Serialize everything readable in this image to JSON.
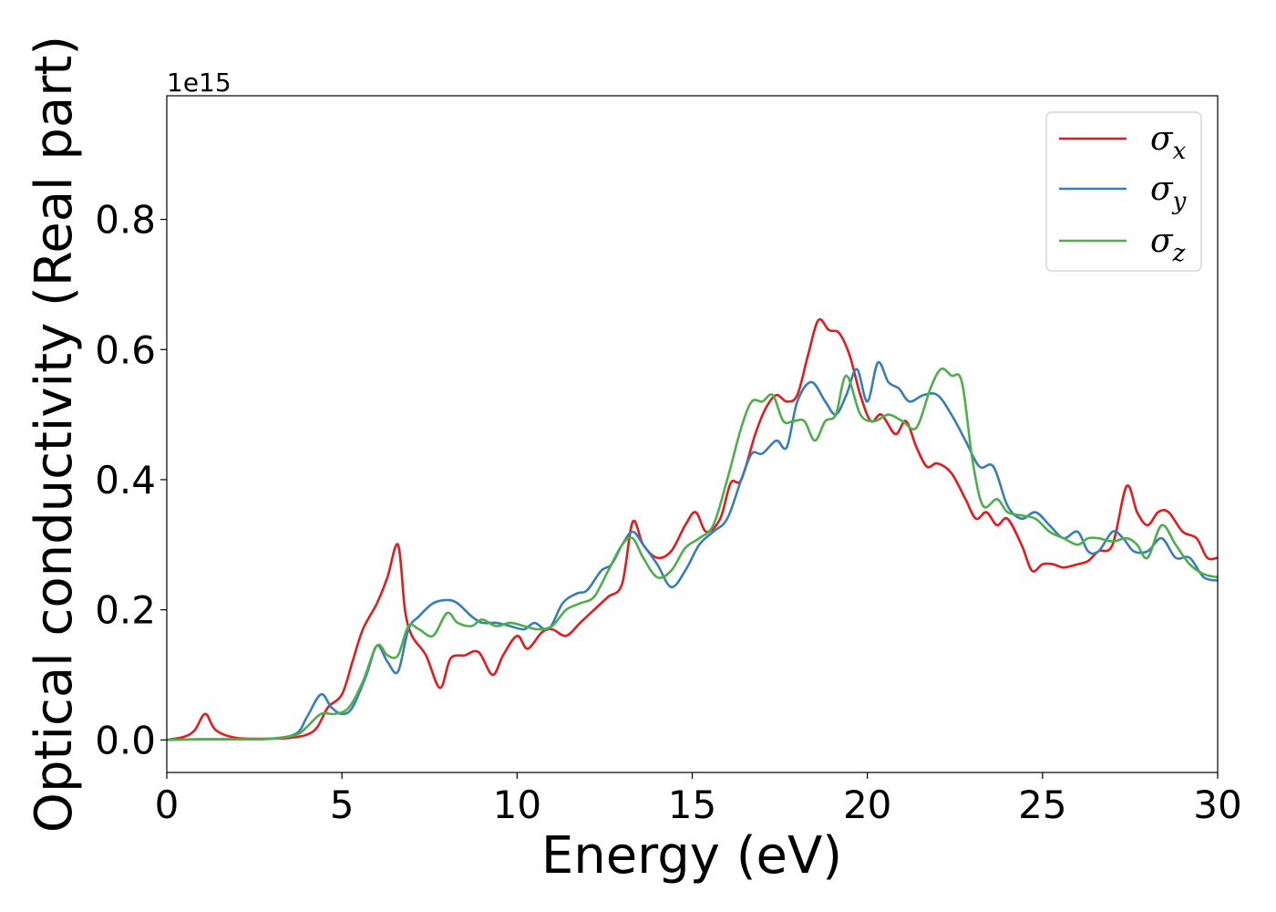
{
  "chart_data": {
    "type": "line",
    "title": "",
    "xlabel": "Energy (eV)",
    "ylabel": "Optical conductivity (Real part)",
    "y_offset_label": "1e15",
    "xlim": [
      0,
      30
    ],
    "ylim": [
      -0.05,
      0.99
    ],
    "xticks": [
      0,
      5,
      10,
      15,
      20,
      25,
      30
    ],
    "xtick_labels": [
      "0",
      "5",
      "10",
      "15",
      "20",
      "25",
      "30"
    ],
    "yticks": [
      0.0,
      0.2,
      0.4,
      0.6,
      0.8
    ],
    "ytick_labels": [
      "0.0",
      "0.2",
      "0.4",
      "0.6",
      "0.8"
    ],
    "grid": false,
    "legend_position": "top-right",
    "series": [
      {
        "name": "σx",
        "symbol": "σ",
        "subscript": "x",
        "color": "#e41a1c",
        "x": [
          0,
          0.5,
          0.8,
          1.1,
          1.4,
          2,
          3,
          3.5,
          4,
          4.3,
          4.6,
          5,
          5.3,
          5.6,
          6,
          6.3,
          6.6,
          6.8,
          7,
          7.4,
          7.8,
          8.1,
          8.5,
          8.9,
          9.3,
          9.6,
          10,
          10.3,
          10.7,
          11,
          11.4,
          11.8,
          12.2,
          12.6,
          13,
          13.3,
          13.6,
          14,
          14.4,
          14.8,
          15.1,
          15.4,
          15.8,
          16.1,
          16.4,
          16.8,
          17.1,
          17.4,
          17.7,
          18,
          18.3,
          18.6,
          18.9,
          19.2,
          19.5,
          19.8,
          20.1,
          20.4,
          20.8,
          21.1,
          21.4,
          21.7,
          22,
          22.4,
          22.8,
          23.1,
          23.4,
          23.7,
          24,
          24.4,
          24.7,
          25,
          25.3,
          25.6,
          26,
          26.3,
          26.6,
          27,
          27.4,
          27.7,
          28,
          28.3,
          28.6,
          29,
          29.4,
          29.7,
          30
        ],
        "y": [
          0.0,
          0.005,
          0.015,
          0.04,
          0.015,
          0.003,
          0.002,
          0.003,
          0.008,
          0.02,
          0.05,
          0.07,
          0.12,
          0.17,
          0.21,
          0.25,
          0.3,
          0.2,
          0.16,
          0.13,
          0.08,
          0.125,
          0.13,
          0.135,
          0.1,
          0.13,
          0.16,
          0.14,
          0.165,
          0.17,
          0.16,
          0.18,
          0.2,
          0.22,
          0.24,
          0.335,
          0.3,
          0.28,
          0.29,
          0.33,
          0.35,
          0.32,
          0.34,
          0.395,
          0.4,
          0.47,
          0.51,
          0.53,
          0.52,
          0.53,
          0.59,
          0.645,
          0.63,
          0.625,
          0.59,
          0.53,
          0.49,
          0.5,
          0.47,
          0.49,
          0.45,
          0.42,
          0.425,
          0.41,
          0.37,
          0.34,
          0.35,
          0.33,
          0.34,
          0.3,
          0.26,
          0.27,
          0.27,
          0.265,
          0.27,
          0.275,
          0.29,
          0.3,
          0.39,
          0.35,
          0.33,
          0.35,
          0.35,
          0.32,
          0.31,
          0.28,
          0.28
        ]
      },
      {
        "name": "σy",
        "symbol": "σ",
        "subscript": "y",
        "color": "#377eb8",
        "x": [
          0,
          1,
          2,
          3,
          3.7,
          4,
          4.4,
          4.7,
          5,
          5.3,
          5.7,
          6,
          6.3,
          6.6,
          6.9,
          7.2,
          7.6,
          8,
          8.3,
          8.7,
          9,
          9.4,
          9.8,
          10.2,
          10.5,
          10.9,
          11.3,
          11.7,
          12,
          12.4,
          12.7,
          13,
          13.3,
          13.6,
          14,
          14.4,
          14.8,
          15.2,
          15.6,
          16,
          16.4,
          16.7,
          17,
          17.4,
          17.7,
          18,
          18.4,
          18.8,
          19.1,
          19.4,
          19.7,
          20,
          20.3,
          20.6,
          20.9,
          21.2,
          21.6,
          22,
          22.4,
          22.8,
          23.2,
          23.6,
          24,
          24.4,
          24.8,
          25.2,
          25.6,
          26,
          26.3,
          26.6,
          27,
          27.3,
          27.6,
          28,
          28.4,
          28.8,
          29.2,
          29.6,
          30
        ],
        "y": [
          0.0,
          0.001,
          0.001,
          0.002,
          0.01,
          0.035,
          0.07,
          0.05,
          0.04,
          0.05,
          0.1,
          0.145,
          0.12,
          0.105,
          0.17,
          0.19,
          0.21,
          0.215,
          0.21,
          0.19,
          0.18,
          0.18,
          0.175,
          0.17,
          0.18,
          0.17,
          0.21,
          0.225,
          0.23,
          0.26,
          0.27,
          0.3,
          0.32,
          0.3,
          0.27,
          0.235,
          0.26,
          0.3,
          0.32,
          0.34,
          0.4,
          0.44,
          0.44,
          0.46,
          0.45,
          0.52,
          0.55,
          0.52,
          0.5,
          0.53,
          0.57,
          0.52,
          0.58,
          0.55,
          0.54,
          0.52,
          0.53,
          0.53,
          0.5,
          0.46,
          0.42,
          0.42,
          0.36,
          0.34,
          0.35,
          0.33,
          0.31,
          0.32,
          0.29,
          0.29,
          0.32,
          0.31,
          0.29,
          0.29,
          0.31,
          0.28,
          0.28,
          0.25,
          0.245
        ]
      },
      {
        "name": "σz",
        "symbol": "σ",
        "subscript": "z",
        "color": "#4daf4a",
        "x": [
          0,
          1,
          2,
          3,
          3.7,
          4,
          4.4,
          4.8,
          5.2,
          5.6,
          6,
          6.3,
          6.6,
          6.9,
          7.2,
          7.6,
          8,
          8.3,
          8.7,
          9,
          9.4,
          9.8,
          10.2,
          10.6,
          11,
          11.4,
          11.8,
          12.2,
          12.6,
          13,
          13.3,
          13.6,
          14,
          14.4,
          14.8,
          15.2,
          15.6,
          16,
          16.4,
          16.7,
          17,
          17.3,
          17.6,
          17.9,
          18.2,
          18.5,
          18.8,
          19.1,
          19.4,
          19.8,
          20.2,
          20.6,
          21,
          21.4,
          21.8,
          22.1,
          22.4,
          22.7,
          23,
          23.3,
          23.7,
          24,
          24.4,
          24.8,
          25.2,
          25.6,
          26,
          26.3,
          26.6,
          27,
          27.4,
          27.7,
          28,
          28.4,
          28.8,
          29.2,
          29.6,
          30
        ],
        "y": [
          0.0,
          0.001,
          0.001,
          0.002,
          0.008,
          0.02,
          0.04,
          0.04,
          0.05,
          0.09,
          0.145,
          0.13,
          0.13,
          0.175,
          0.17,
          0.16,
          0.195,
          0.18,
          0.175,
          0.185,
          0.175,
          0.18,
          0.175,
          0.17,
          0.175,
          0.2,
          0.21,
          0.22,
          0.26,
          0.3,
          0.31,
          0.28,
          0.25,
          0.26,
          0.295,
          0.31,
          0.33,
          0.4,
          0.48,
          0.52,
          0.52,
          0.53,
          0.49,
          0.49,
          0.49,
          0.46,
          0.49,
          0.5,
          0.56,
          0.5,
          0.49,
          0.5,
          0.49,
          0.48,
          0.54,
          0.57,
          0.56,
          0.55,
          0.43,
          0.36,
          0.37,
          0.35,
          0.345,
          0.34,
          0.32,
          0.31,
          0.3,
          0.31,
          0.31,
          0.305,
          0.31,
          0.3,
          0.28,
          0.33,
          0.3,
          0.27,
          0.255,
          0.25
        ]
      }
    ]
  }
}
